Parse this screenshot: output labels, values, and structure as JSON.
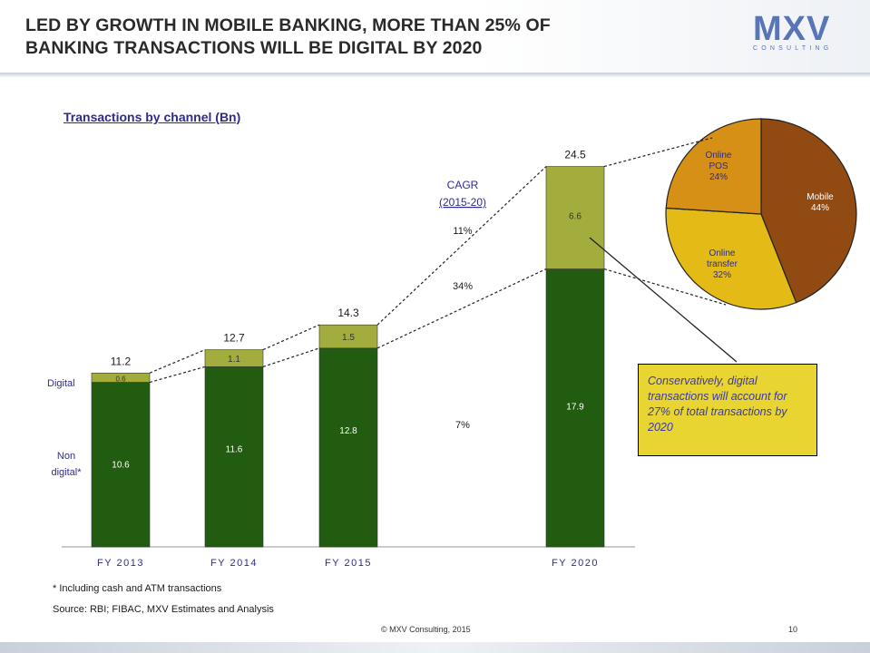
{
  "header": {
    "title_line1": "LED BY GROWTH IN MOBILE BANKING, MORE THAN 25% OF",
    "title_line2": "BANKING TRANSACTIONS WILL BE DIGITAL BY 2020",
    "logo_text": "MXV",
    "logo_sub": "CONSULTING"
  },
  "subtitle": "Transactions by channel (Bn)",
  "chart_data": [
    {
      "type": "bar",
      "stacked": true,
      "categories": [
        "FY 2013",
        "FY 2014",
        "FY 2015",
        "FY 2020"
      ],
      "series": [
        {
          "name": "Non digital*",
          "color": "#225c10",
          "values": [
            10.6,
            11.6,
            12.8,
            17.9
          ],
          "labels": [
            "10.6",
            "11.6",
            "12.8",
            "17.9"
          ]
        },
        {
          "name": "Digital",
          "color": "#a3ad3e",
          "values": [
            0.6,
            1.1,
            1.5,
            6.6
          ],
          "labels": [
            "0.6",
            "1.1",
            "1.5",
            "6.6"
          ]
        }
      ],
      "totals": [
        "11.2",
        "12.7",
        "14.3",
        "24.5"
      ],
      "totals_values": [
        11.2,
        12.7,
        14.3,
        24.5
      ],
      "cagr": {
        "title": "CAGR",
        "period": "(2015-20)",
        "rows": [
          {
            "label": "11%"
          },
          {
            "label": "34%"
          },
          {
            "label": "7%"
          }
        ]
      }
    },
    {
      "type": "pie",
      "slices": [
        {
          "label_lines": [
            "Mobile"
          ],
          "pct": "44%",
          "value": 44,
          "color": "#914a12"
        },
        {
          "label_lines": [
            "Online",
            "transfer"
          ],
          "pct": "32%",
          "value": 32,
          "color": "#e3ba16"
        },
        {
          "label_lines": [
            "Online",
            "POS"
          ],
          "pct": "24%",
          "value": 24,
          "color": "#d69015"
        }
      ]
    }
  ],
  "callout": "Conservatively, digital transactions will account for 27% of total transactions by 2020",
  "footnote": "* Including cash and ATM transactions",
  "source": "Source: RBI; FIBAC, MXV Estimates and Analysis",
  "copyright": "© MXV Consulting, 2015",
  "page_number": "10"
}
